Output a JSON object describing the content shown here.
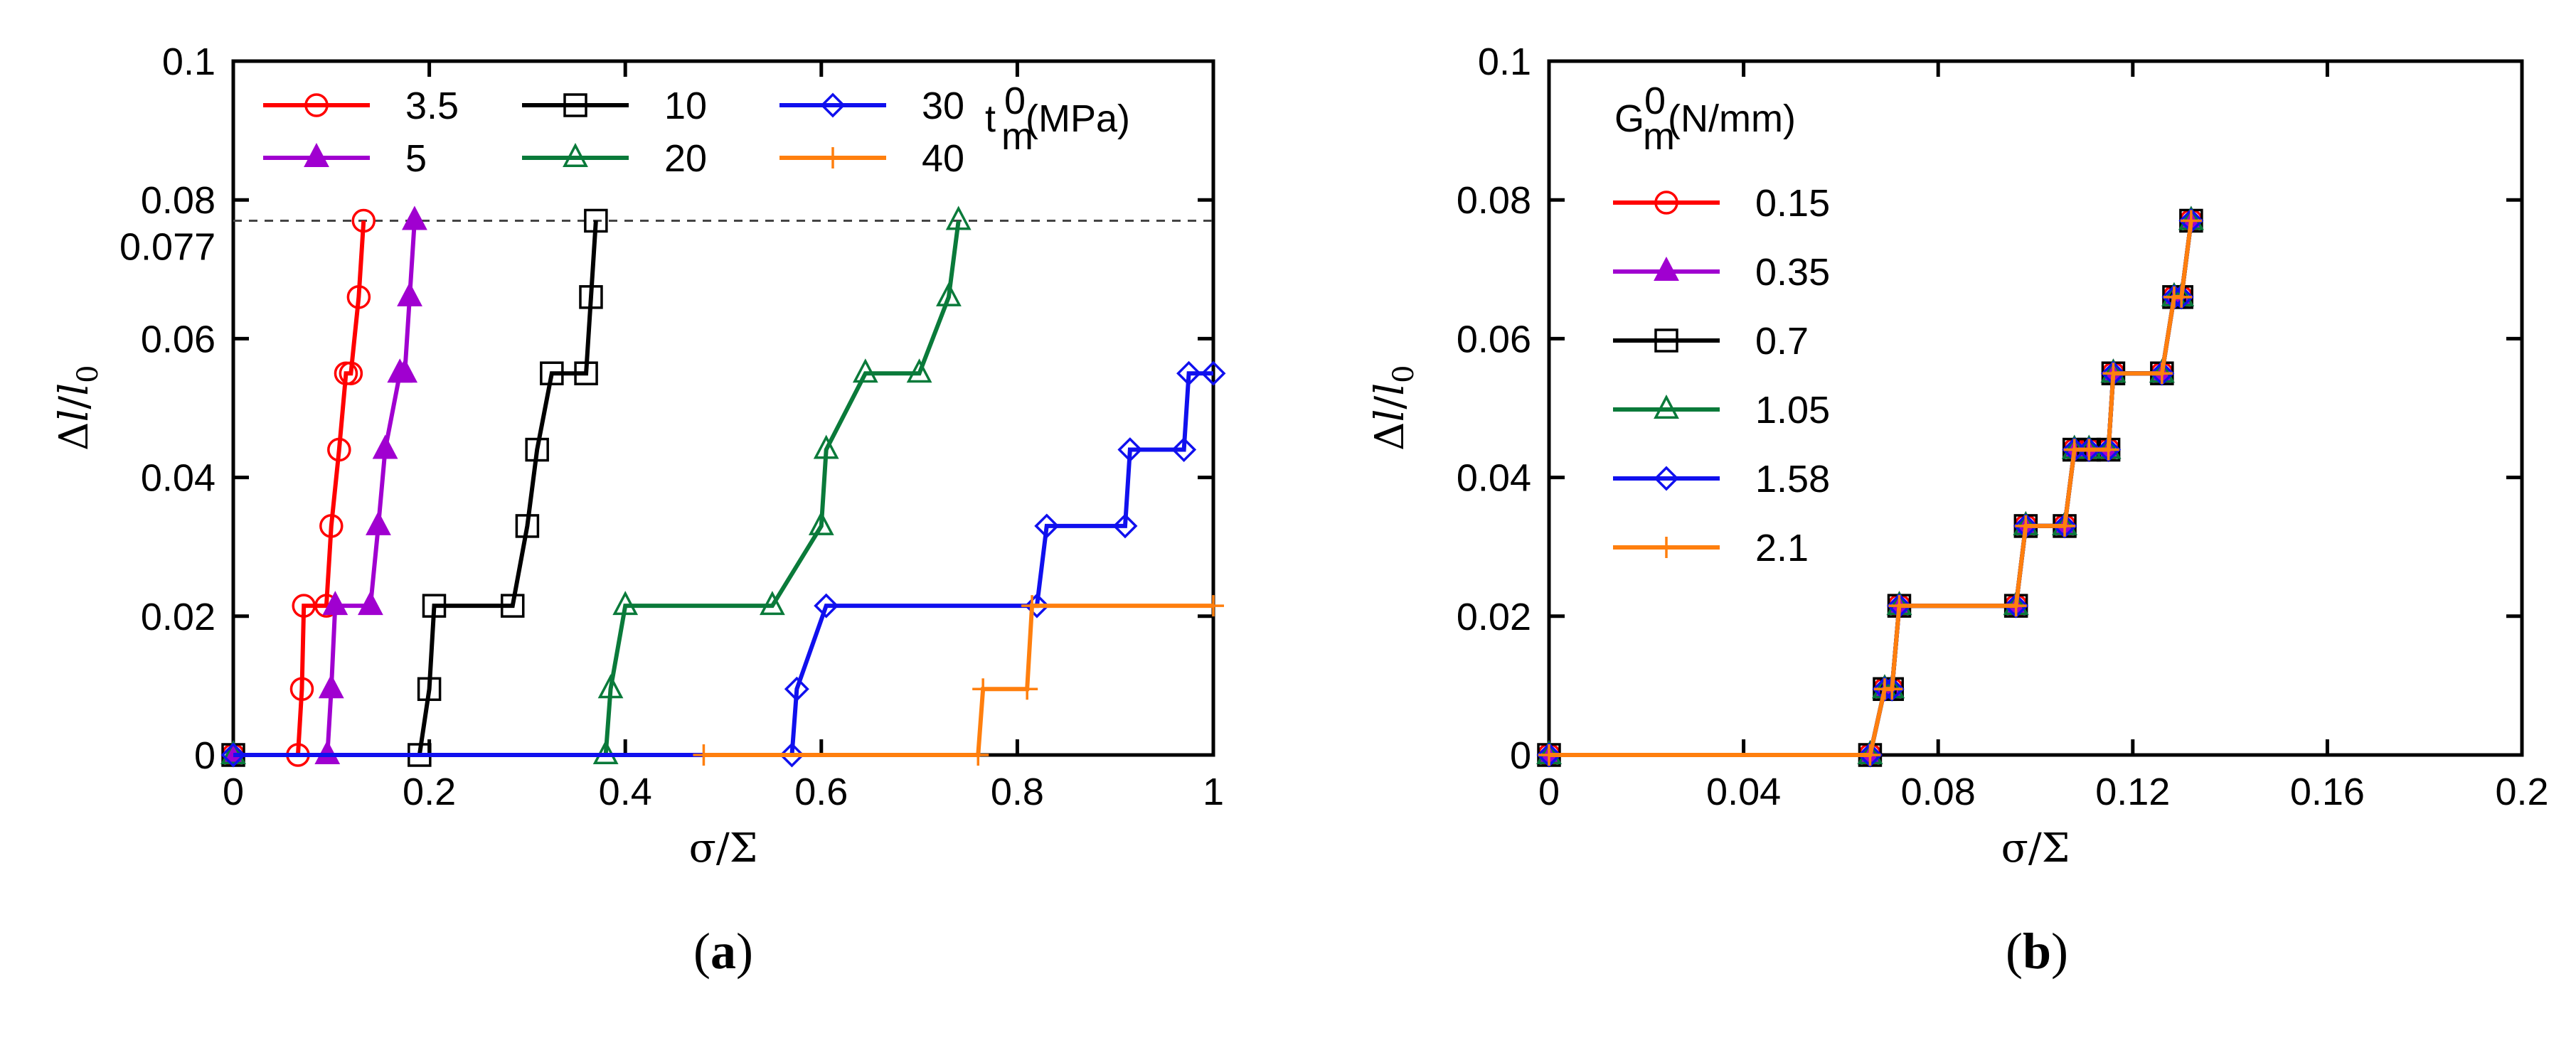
{
  "chart_data": [
    {
      "type": "line",
      "panel": "a",
      "panel_label": "(a)",
      "xlabel": "σ/Σ",
      "ylabel": "Δl/l0",
      "xlim": [
        0,
        1
      ],
      "ylim": [
        0,
        0.1
      ],
      "xticks": [
        0,
        0.2,
        0.4,
        0.6,
        0.8,
        1
      ],
      "xtick_labels": [
        "0",
        "0.2",
        "0.4",
        "0.6",
        "0.8",
        "1"
      ],
      "yticks": [
        0,
        0.02,
        0.04,
        0.06,
        0.08,
        0.1
      ],
      "ytick_labels": [
        "0",
        "0.02",
        "0.04",
        "0.06",
        "0.08",
        "0.1"
      ],
      "legend_title": "t0m (MPa)",
      "reference_line": {
        "y": 0.077,
        "label": "0.077"
      },
      "series": [
        {
          "name": "3.5",
          "color": "#ff0000",
          "marker": "circle",
          "x": [
            0,
            0.066,
            0.07,
            0.072,
            0.095,
            0.1,
            0.108,
            0.115,
            0.12,
            0.128,
            0.133
          ],
          "y": [
            0,
            0,
            0.0095,
            0.0215,
            0.0215,
            0.033,
            0.044,
            0.055,
            0.055,
            0.066,
            0.077
          ]
        },
        {
          "name": "5",
          "color": "#a000d0",
          "marker": "triangle-filled",
          "x": [
            0,
            0.096,
            0.1,
            0.104,
            0.14,
            0.148,
            0.155,
            0.17,
            0.175,
            0.18,
            0.185
          ],
          "y": [
            0,
            0,
            0.0095,
            0.0215,
            0.0215,
            0.033,
            0.044,
            0.055,
            0.055,
            0.066,
            0.077
          ]
        },
        {
          "name": "10",
          "color": "#000000",
          "marker": "square",
          "x": [
            0,
            0.19,
            0.2,
            0.205,
            0.285,
            0.3,
            0.31,
            0.325,
            0.36,
            0.365,
            0.37
          ],
          "y": [
            0,
            0,
            0.0095,
            0.0215,
            0.0215,
            0.033,
            0.044,
            0.055,
            0.055,
            0.066,
            0.077
          ]
        },
        {
          "name": "20",
          "color": "#0a7a3a",
          "marker": "triangle",
          "x": [
            0,
            0.38,
            0.385,
            0.4,
            0.55,
            0.6,
            0.605,
            0.645,
            0.7,
            0.73,
            0.74
          ],
          "y": [
            0,
            0,
            0.0095,
            0.0215,
            0.0215,
            0.033,
            0.044,
            0.055,
            0.055,
            0.066,
            0.077
          ]
        },
        {
          "name": "30",
          "color": "#1010ee",
          "marker": "diamond",
          "x": [
            0,
            0.57,
            0.575,
            0.605,
            0.82,
            0.83,
            0.91,
            0.915,
            0.97,
            0.975,
            1.0
          ],
          "y": [
            0,
            0,
            0.0095,
            0.0215,
            0.0215,
            0.033,
            0.033,
            0.044,
            0.044,
            0.055,
            0.055
          ]
        },
        {
          "name": "40",
          "color": "#ff7f0e",
          "marker": "plus",
          "x": [
            0.48,
            0.76,
            0.765,
            0.81,
            0.815,
            1.0
          ],
          "y": [
            0,
            0,
            0.0095,
            0.0095,
            0.0215,
            0.0215
          ]
        }
      ]
    },
    {
      "type": "line",
      "panel": "b",
      "panel_label": "(b)",
      "xlabel": "σ/Σ",
      "ylabel": "Δl/l0",
      "xlim": [
        0,
        0.2
      ],
      "ylim": [
        0,
        0.1
      ],
      "xticks": [
        0,
        0.04,
        0.08,
        0.12,
        0.16,
        0.2
      ],
      "xtick_labels": [
        "0",
        "0.04",
        "0.08",
        "0.12",
        "0.16",
        "0.2"
      ],
      "yticks": [
        0,
        0.02,
        0.04,
        0.06,
        0.08,
        0.1
      ],
      "ytick_labels": [
        "0",
        "0.02",
        "0.04",
        "0.06",
        "0.08",
        "0.1"
      ],
      "legend_title": "G0m (N/mm)",
      "shared_curve": {
        "x": [
          0,
          0.066,
          0.069,
          0.0705,
          0.072,
          0.096,
          0.098,
          0.106,
          0.108,
          0.111,
          0.115,
          0.116,
          0.126,
          0.1285,
          0.13,
          0.132
        ],
        "y": [
          0,
          0,
          0.0095,
          0.0095,
          0.0215,
          0.0215,
          0.033,
          0.033,
          0.044,
          0.044,
          0.044,
          0.055,
          0.055,
          0.066,
          0.066,
          0.077
        ]
      },
      "series": [
        {
          "name": "0.15",
          "color": "#ff0000",
          "marker": "circle"
        },
        {
          "name": "0.35",
          "color": "#a000d0",
          "marker": "triangle-filled"
        },
        {
          "name": "0.7",
          "color": "#000000",
          "marker": "square"
        },
        {
          "name": "1.05",
          "color": "#0a7a3a",
          "marker": "triangle"
        },
        {
          "name": "1.58",
          "color": "#1010ee",
          "marker": "diamond"
        },
        {
          "name": "2.1",
          "color": "#ff7f0e",
          "marker": "plus"
        }
      ]
    }
  ]
}
